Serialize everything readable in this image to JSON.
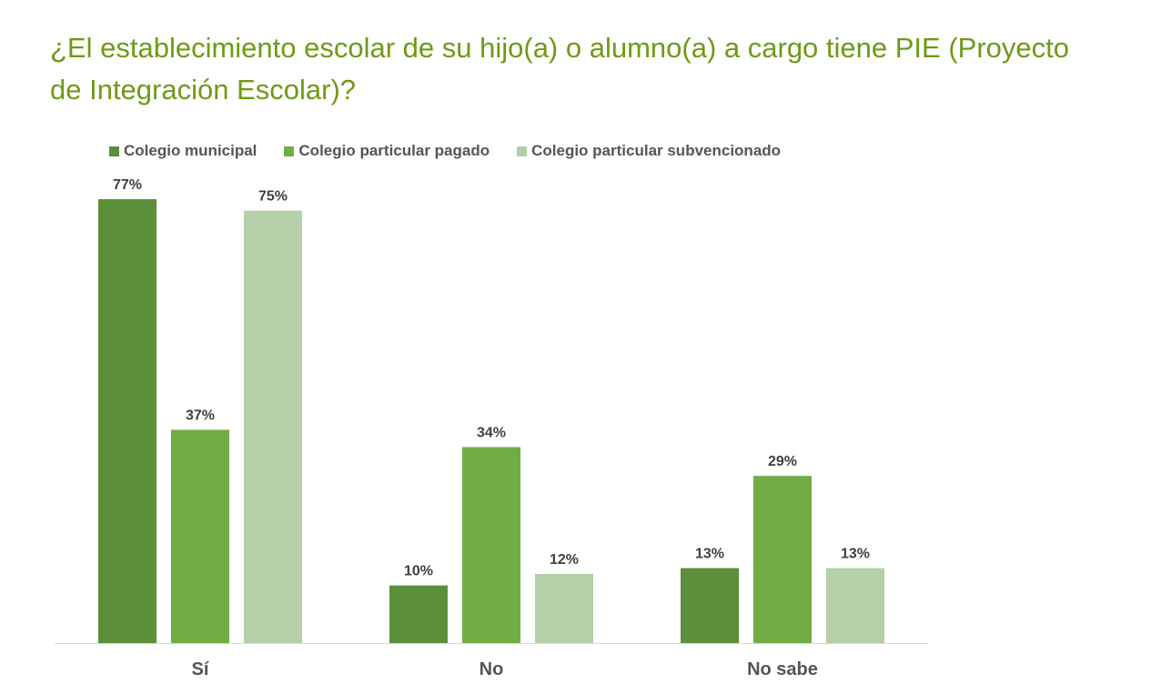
{
  "chart_data": {
    "type": "bar",
    "title": "¿El establecimiento escolar de su hijo(a) o alumno(a) a cargo tiene PIE (Proyecto de Integración Escolar)?",
    "categories": [
      "Sí",
      "No",
      "No sabe"
    ],
    "series": [
      {
        "name": "Colegio municipal",
        "color": "#5b8f3a",
        "values": [
          77,
          10,
          13
        ]
      },
      {
        "name": "Colegio particular pagado",
        "color": "#70ad47",
        "values": [
          37,
          34,
          29
        ]
      },
      {
        "name": "Colegio particular subvencionado",
        "color": "#b5d0a8",
        "values": [
          75,
          12,
          13
        ]
      }
    ],
    "value_suffix": "%",
    "ylim": [
      0,
      77
    ],
    "legend": "top",
    "grid": false
  }
}
